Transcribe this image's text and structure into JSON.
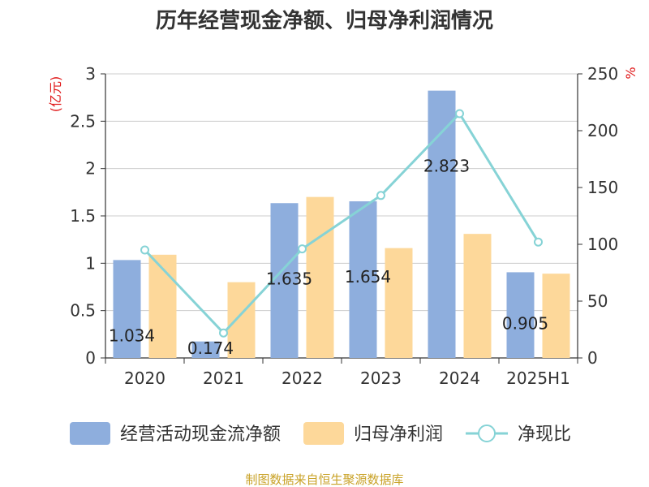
{
  "title": "历年经营现金净额、归母净利润情况",
  "source": "制图数据来自恒生聚源数据库",
  "chart_data": {
    "type": "bar",
    "categories": [
      "2020",
      "2021",
      "2022",
      "2023",
      "2024",
      "2025H1"
    ],
    "y_left": {
      "label": "(亿元)",
      "ylim": [
        0,
        3
      ],
      "ticks": [
        "0",
        "0.5",
        "1",
        "1.5",
        "2",
        "2.5",
        "3"
      ]
    },
    "y_right": {
      "label": "%",
      "ylim": [
        0,
        250
      ],
      "ticks": [
        "0",
        "50",
        "100",
        "150",
        "200",
        "250"
      ]
    },
    "grid": true,
    "legend_position": "bottom",
    "series": [
      {
        "name": "经营活动现金流净额",
        "type": "bar",
        "axis": "left",
        "color": "#8eaedd",
        "values": [
          1.034,
          0.174,
          1.635,
          1.654,
          2.823,
          0.905
        ],
        "labels": [
          "1.034",
          "0.174",
          "1.635",
          "1.654",
          "2.823",
          "0.905"
        ]
      },
      {
        "name": "归母净利润",
        "type": "bar",
        "axis": "left",
        "color": "#fdd89a",
        "values": [
          1.09,
          0.8,
          1.7,
          1.16,
          1.31,
          0.89
        ]
      },
      {
        "name": "净现比",
        "type": "line",
        "axis": "right",
        "color": "#86d3d6",
        "values": [
          95,
          22,
          96,
          143,
          215,
          102
        ]
      }
    ]
  }
}
